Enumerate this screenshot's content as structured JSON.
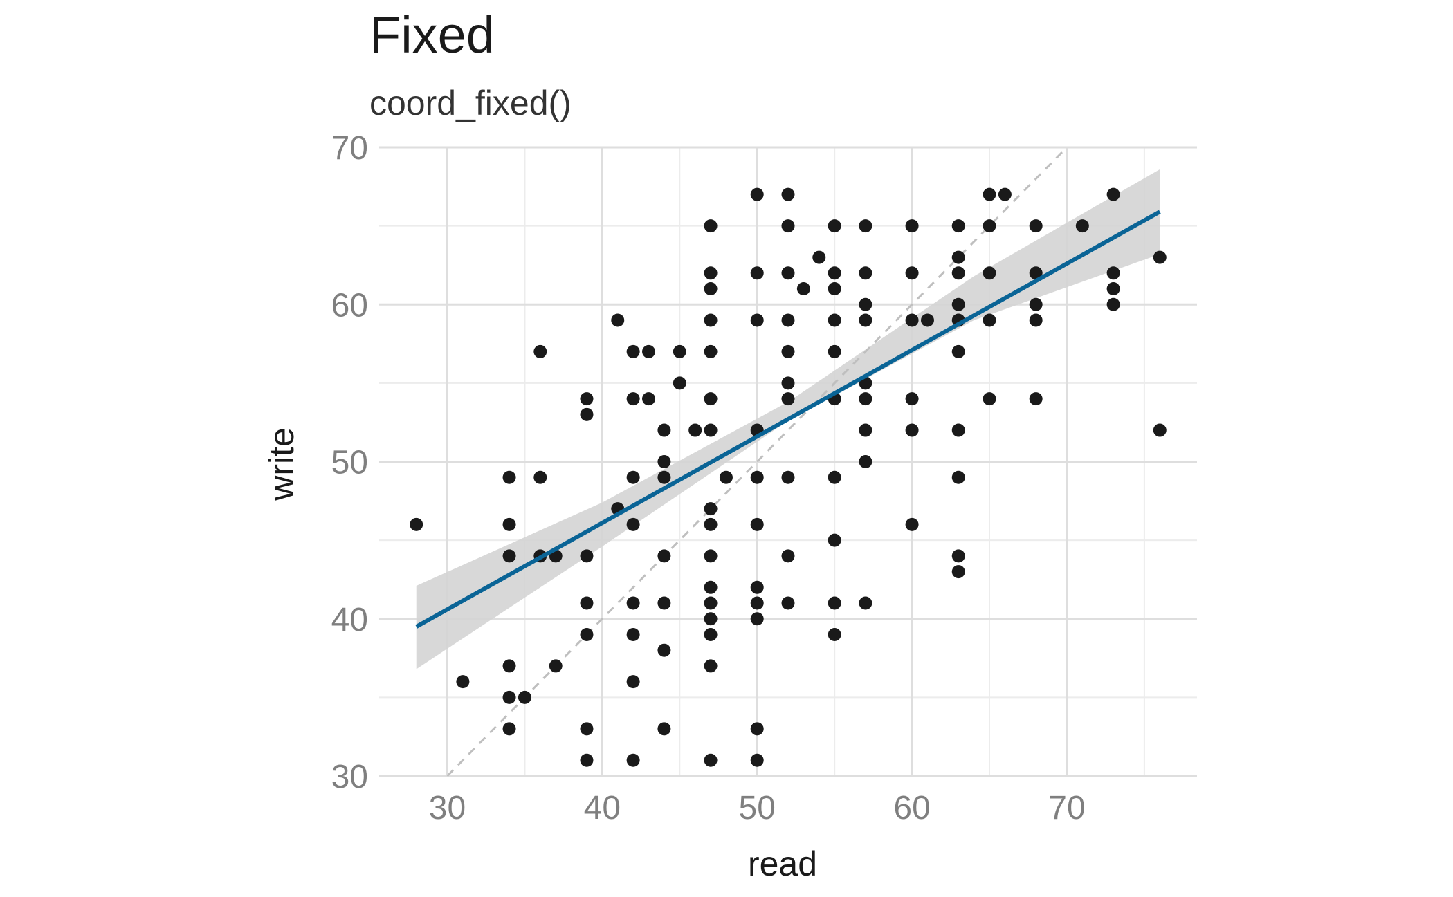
{
  "chart_data": {
    "type": "scatter",
    "title": "Fixed",
    "subtitle": "coord_fixed()",
    "xlabel": "read",
    "ylabel": "write",
    "xlim": [
      25.6,
      78.4
    ],
    "ylim": [
      30,
      70
    ],
    "x_ticks": [
      30,
      40,
      50,
      60,
      70
    ],
    "y_ticks": [
      30,
      40,
      50,
      60,
      70
    ],
    "grid": true,
    "reference_line": {
      "type": "identity",
      "slope": 1,
      "intercept": 0,
      "style": "dashed",
      "color": "#bfbfbf"
    },
    "regression": {
      "type": "linear",
      "color": "#0a6496",
      "band_color": "#d4d4d4",
      "fit": [
        [
          28,
          39.5
        ],
        [
          76,
          65.9
        ]
      ],
      "band": [
        {
          "x": 28,
          "lo": 36.8,
          "hi": 42.1
        },
        {
          "x": 40,
          "lo": 44.6,
          "hi": 47.4
        },
        {
          "x": 52,
          "lo": 52.6,
          "hi": 53.8
        },
        {
          "x": 64,
          "lo": 59.0,
          "hi": 61.8
        },
        {
          "x": 76,
          "lo": 63.2,
          "hi": 68.6
        }
      ]
    },
    "point_color": "#1a1a1a",
    "points": [
      [
        28,
        46
      ],
      [
        31,
        36
      ],
      [
        34,
        49
      ],
      [
        34,
        46
      ],
      [
        34,
        44
      ],
      [
        34,
        37
      ],
      [
        34,
        35
      ],
      [
        34,
        33
      ],
      [
        35,
        35
      ],
      [
        36,
        57
      ],
      [
        36,
        49
      ],
      [
        36,
        44
      ],
      [
        37,
        44
      ],
      [
        37,
        37
      ],
      [
        39,
        54
      ],
      [
        39,
        53
      ],
      [
        39,
        44
      ],
      [
        39,
        41
      ],
      [
        39,
        39
      ],
      [
        39,
        33
      ],
      [
        39,
        31
      ],
      [
        41,
        59
      ],
      [
        41,
        47
      ],
      [
        42,
        57
      ],
      [
        42,
        54
      ],
      [
        42,
        49
      ],
      [
        42,
        46
      ],
      [
        42,
        41
      ],
      [
        42,
        39
      ],
      [
        42,
        36
      ],
      [
        42,
        31
      ],
      [
        43,
        57
      ],
      [
        43,
        54
      ],
      [
        44,
        52
      ],
      [
        44,
        50
      ],
      [
        44,
        49
      ],
      [
        44,
        44
      ],
      [
        44,
        41
      ],
      [
        44,
        38
      ],
      [
        44,
        33
      ],
      [
        45,
        57
      ],
      [
        45,
        55
      ],
      [
        46,
        52
      ],
      [
        47,
        65
      ],
      [
        47,
        62
      ],
      [
        47,
        61
      ],
      [
        47,
        59
      ],
      [
        47,
        57
      ],
      [
        47,
        54
      ],
      [
        47,
        52
      ],
      [
        47,
        47
      ],
      [
        47,
        46
      ],
      [
        47,
        44
      ],
      [
        47,
        42
      ],
      [
        47,
        41
      ],
      [
        47,
        40
      ],
      [
        47,
        39
      ],
      [
        47,
        37
      ],
      [
        47,
        31
      ],
      [
        48,
        49
      ],
      [
        50,
        67
      ],
      [
        50,
        62
      ],
      [
        50,
        59
      ],
      [
        50,
        52
      ],
      [
        50,
        49
      ],
      [
        50,
        46
      ],
      [
        50,
        42
      ],
      [
        50,
        41
      ],
      [
        50,
        40
      ],
      [
        50,
        33
      ],
      [
        50,
        31
      ],
      [
        52,
        67
      ],
      [
        52,
        65
      ],
      [
        52,
        62
      ],
      [
        52,
        59
      ],
      [
        52,
        57
      ],
      [
        52,
        55
      ],
      [
        52,
        54
      ],
      [
        52,
        49
      ],
      [
        52,
        44
      ],
      [
        52,
        41
      ],
      [
        53,
        61
      ],
      [
        54,
        63
      ],
      [
        55,
        65
      ],
      [
        55,
        62
      ],
      [
        55,
        61
      ],
      [
        55,
        59
      ],
      [
        55,
        57
      ],
      [
        55,
        54
      ],
      [
        55,
        49
      ],
      [
        55,
        45
      ],
      [
        55,
        41
      ],
      [
        55,
        39
      ],
      [
        57,
        65
      ],
      [
        57,
        62
      ],
      [
        57,
        60
      ],
      [
        57,
        59
      ],
      [
        57,
        55
      ],
      [
        57,
        54
      ],
      [
        57,
        52
      ],
      [
        57,
        50
      ],
      [
        57,
        41
      ],
      [
        60,
        65
      ],
      [
        60,
        62
      ],
      [
        60,
        59
      ],
      [
        60,
        54
      ],
      [
        60,
        52
      ],
      [
        60,
        46
      ],
      [
        61,
        59
      ],
      [
        63,
        65
      ],
      [
        63,
        63
      ],
      [
        63,
        62
      ],
      [
        63,
        60
      ],
      [
        63,
        59
      ],
      [
        63,
        57
      ],
      [
        63,
        52
      ],
      [
        63,
        49
      ],
      [
        63,
        44
      ],
      [
        63,
        43
      ],
      [
        65,
        67
      ],
      [
        65,
        65
      ],
      [
        65,
        62
      ],
      [
        65,
        59
      ],
      [
        65,
        54
      ],
      [
        66,
        67
      ],
      [
        68,
        65
      ],
      [
        68,
        62
      ],
      [
        68,
        60
      ],
      [
        68,
        59
      ],
      [
        68,
        54
      ],
      [
        71,
        65
      ],
      [
        73,
        67
      ],
      [
        73,
        62
      ],
      [
        73,
        61
      ],
      [
        73,
        60
      ],
      [
        76,
        63
      ],
      [
        76,
        52
      ]
    ]
  }
}
